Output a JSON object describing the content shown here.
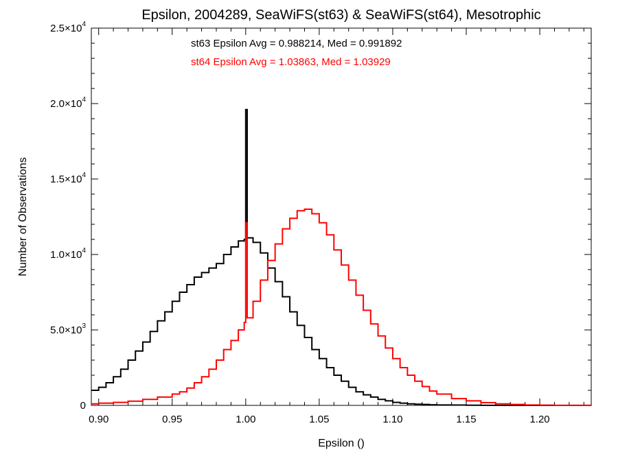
{
  "chart_data": {
    "type": "line",
    "title": "Epsilon, 2004289, SeaWiFS(st63) & SeaWiFS(st64), Mesotrophic",
    "xlabel": "Epsilon ()",
    "ylabel": "Number of Observations",
    "xlim": [
      0.895,
      1.235
    ],
    "ylim": [
      0,
      25000
    ],
    "x_ticks": [
      0.9,
      0.95,
      1.0,
      1.05,
      1.1,
      1.15,
      1.2
    ],
    "x_tick_labels": [
      "0.90",
      "0.95",
      "1.00",
      "1.05",
      "1.10",
      "1.15",
      "1.20"
    ],
    "y_ticks": [
      {
        "value": 0,
        "mantissa": "0",
        "exp": ""
      },
      {
        "value": 5000,
        "mantissa": "5.0×10",
        "exp": "3"
      },
      {
        "value": 10000,
        "mantissa": "1.0×10",
        "exp": "4"
      },
      {
        "value": 15000,
        "mantissa": "1.5×10",
        "exp": "4"
      },
      {
        "value": 20000,
        "mantissa": "2.0×10",
        "exp": "4"
      },
      {
        "value": 25000,
        "mantissa": "2.5×10",
        "exp": "4"
      }
    ],
    "grid": false,
    "annotations": [
      {
        "text": "st63 Epsilon Avg = 0.988214, Med = 0.991892",
        "color": "#000000"
      },
      {
        "text": "st64 Epsilon Avg = 1.03863, Med = 1.03929",
        "color": "#ff0000"
      }
    ],
    "series": [
      {
        "color": "#000000",
        "x": [
          0.895,
          0.9,
          0.905,
          0.91,
          0.915,
          0.92,
          0.925,
          0.93,
          0.935,
          0.94,
          0.945,
          0.95,
          0.955,
          0.96,
          0.965,
          0.97,
          0.975,
          0.98,
          0.985,
          0.99,
          0.995,
          0.999,
          1.0,
          1.001,
          1.005,
          1.01,
          1.015,
          1.02,
          1.025,
          1.03,
          1.035,
          1.04,
          1.045,
          1.05,
          1.055,
          1.06,
          1.065,
          1.07,
          1.075,
          1.08,
          1.085,
          1.09,
          1.095,
          1.1,
          1.105,
          1.11,
          1.115,
          1.12,
          1.125,
          1.13,
          1.14,
          1.15,
          1.16,
          1.17,
          1.18,
          1.235
        ],
        "y": [
          1000,
          1200,
          1500,
          1900,
          2400,
          3000,
          3600,
          4200,
          4900,
          5600,
          6200,
          6900,
          7500,
          8000,
          8500,
          8800,
          9100,
          9400,
          10000,
          10500,
          10900,
          11000,
          19600,
          11100,
          10800,
          10100,
          9100,
          8200,
          7200,
          6200,
          5300,
          4500,
          3700,
          3100,
          2500,
          2000,
          1600,
          1200,
          900,
          700,
          550,
          400,
          300,
          200,
          150,
          100,
          80,
          60,
          40,
          30,
          20,
          10,
          5,
          2,
          0,
          0
        ]
      },
      {
        "color": "#ff0000",
        "x": [
          0.895,
          0.9,
          0.91,
          0.92,
          0.93,
          0.94,
          0.95,
          0.955,
          0.96,
          0.965,
          0.97,
          0.975,
          0.98,
          0.985,
          0.99,
          0.995,
          0.999,
          1.0,
          1.001,
          1.005,
          1.01,
          1.015,
          1.02,
          1.025,
          1.03,
          1.035,
          1.04,
          1.045,
          1.05,
          1.055,
          1.06,
          1.065,
          1.07,
          1.075,
          1.08,
          1.085,
          1.09,
          1.095,
          1.1,
          1.105,
          1.11,
          1.115,
          1.12,
          1.125,
          1.13,
          1.14,
          1.15,
          1.16,
          1.17,
          1.18,
          1.19,
          1.2,
          1.21,
          1.235
        ],
        "y": [
          100,
          150,
          200,
          280,
          400,
          550,
          750,
          900,
          1150,
          1500,
          1900,
          2400,
          3000,
          3700,
          4300,
          5000,
          5500,
          12100,
          5800,
          6900,
          8300,
          9600,
          10700,
          11700,
          12400,
          12900,
          13000,
          12700,
          12100,
          11300,
          10300,
          9300,
          8300,
          7300,
          6300,
          5400,
          4600,
          3800,
          3100,
          2500,
          2000,
          1600,
          1250,
          950,
          750,
          450,
          300,
          180,
          100,
          60,
          30,
          15,
          8,
          0
        ]
      }
    ]
  }
}
